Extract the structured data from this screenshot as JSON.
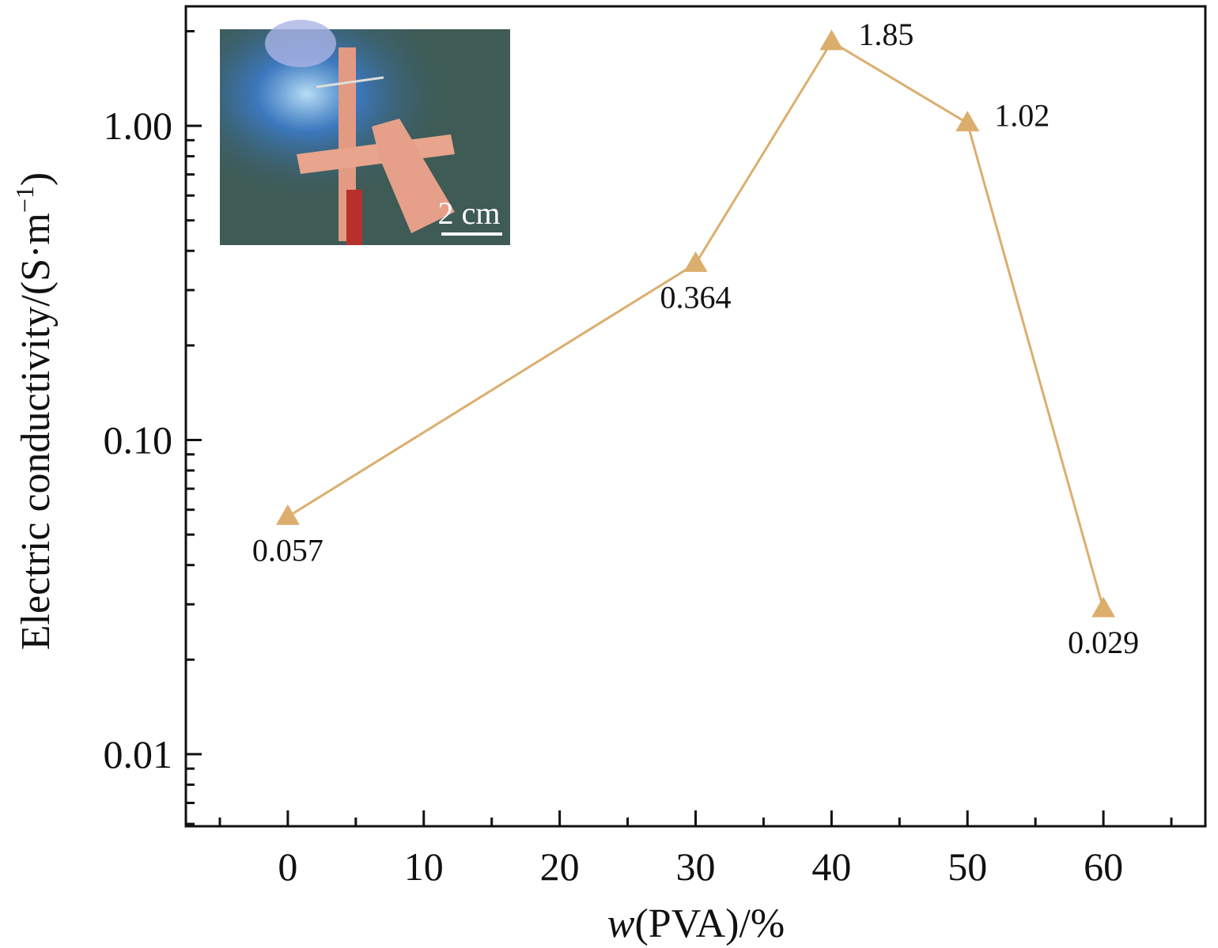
{
  "chart_data": {
    "type": "line",
    "title": "",
    "xlabel": "w(PVA)/%",
    "xlabel_italic_part": "w",
    "xlabel_rest": "(PVA)/%",
    "ylabel": "Electric conductivity/(S·m⁻¹)",
    "ylabel_main": "Electric conductivity/(S·m",
    "ylabel_superscript": "−1",
    "ylabel_close": ")",
    "yscale": "log",
    "xlim": [
      -7.5,
      67.5
    ],
    "ylim": [
      0.0059,
      2.4
    ],
    "x_ticks": [
      0,
      10,
      20,
      30,
      40,
      50,
      60
    ],
    "x_tick_labels": [
      "0",
      "10",
      "20",
      "30",
      "40",
      "50",
      "60"
    ],
    "y_ticks": [
      0.01,
      0.1,
      1.0
    ],
    "y_tick_labels": [
      "0.01",
      "0.10",
      "1.00"
    ],
    "series": [
      {
        "name": "conductivity",
        "color": "#dcae6e",
        "marker": "triangle",
        "x": [
          0,
          30,
          40,
          50,
          60
        ],
        "y": [
          0.057,
          0.364,
          1.85,
          1.02,
          0.029
        ],
        "labels": [
          "0.057",
          "0.364",
          "1.85",
          "1.02",
          "0.029"
        ],
        "label_positions": [
          "below",
          "below",
          "right",
          "right",
          "below"
        ]
      }
    ],
    "inset": {
      "description": "photo of LED lit through conductive sample",
      "scale_bar_label": "2 cm"
    }
  }
}
